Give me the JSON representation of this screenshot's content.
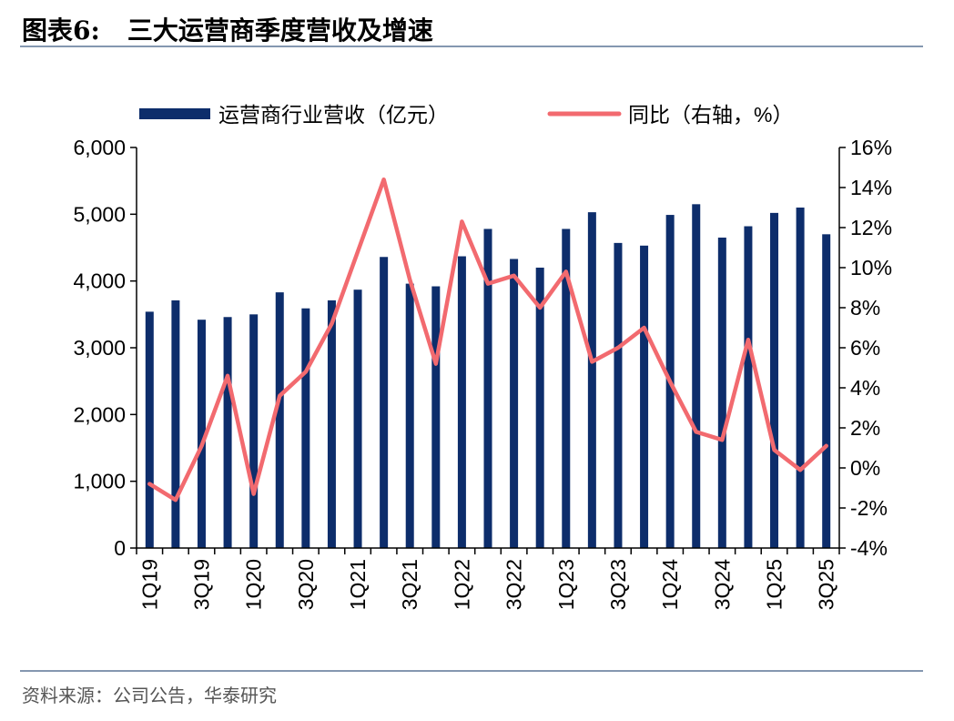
{
  "header": {
    "label": "图表6:",
    "title": "三大运营商季度营收及增速"
  },
  "source": "资料来源：公司公告，华泰研究",
  "colors": {
    "bar": "#0d2d6b",
    "line": "#f26a6f",
    "rule": "#8497b0"
  },
  "chart_data": {
    "type": "bar",
    "categories": [
      "1Q19",
      "2Q19",
      "3Q19",
      "4Q19",
      "1Q20",
      "2Q20",
      "3Q20",
      "4Q20",
      "1Q21",
      "2Q21",
      "3Q21",
      "4Q21",
      "1Q22",
      "2Q22",
      "3Q22",
      "4Q22",
      "1Q23",
      "2Q23",
      "3Q23",
      "4Q23",
      "1Q24",
      "2Q24",
      "3Q24",
      "4Q24",
      "1Q25",
      "2Q25",
      "3Q25"
    ],
    "x_tick_labels": [
      "1Q19",
      "",
      "3Q19",
      "",
      "1Q20",
      "",
      "3Q20",
      "",
      "1Q21",
      "",
      "3Q21",
      "",
      "1Q22",
      "",
      "3Q22",
      "",
      "1Q23",
      "",
      "3Q23",
      "",
      "1Q24",
      "",
      "3Q24",
      "",
      "1Q25",
      "",
      "3Q25"
    ],
    "series": [
      {
        "name": "运营商行业营收（亿元）",
        "type": "bar",
        "axis": "left",
        "values": [
          3540,
          3710,
          3420,
          3460,
          3500,
          3830,
          3590,
          3710,
          3870,
          4360,
          3960,
          3920,
          4370,
          4780,
          4330,
          4200,
          4780,
          5030,
          4570,
          4530,
          4990,
          5150,
          4650,
          4820,
          5020,
          5100,
          4700
        ]
      },
      {
        "name": "同比（右轴，%）",
        "type": "line",
        "axis": "right",
        "values": [
          -0.8,
          -1.6,
          1.1,
          4.6,
          -1.3,
          3.6,
          4.8,
          7.2,
          10.8,
          14.4,
          9.4,
          5.2,
          12.3,
          9.2,
          9.6,
          8.0,
          9.8,
          5.3,
          6.0,
          7.0,
          4.3,
          1.8,
          1.4,
          6.4,
          0.9,
          -0.1,
          1.1
        ]
      }
    ],
    "y_left": {
      "min": 0,
      "max": 6000,
      "step": 1000,
      "tick_labels": [
        "0",
        "1,000",
        "2,000",
        "3,000",
        "4,000",
        "5,000",
        "6,000"
      ]
    },
    "y_right": {
      "min": -4,
      "max": 16,
      "step": 2,
      "tick_labels": [
        "-4%",
        "-2%",
        "0%",
        "2%",
        "4%",
        "6%",
        "8%",
        "10%",
        "12%",
        "14%",
        "16%"
      ]
    },
    "legend": {
      "position": "top",
      "entries": [
        "运营商行业营收（亿元）",
        "同比（右轴，%）"
      ]
    },
    "grid": false
  }
}
